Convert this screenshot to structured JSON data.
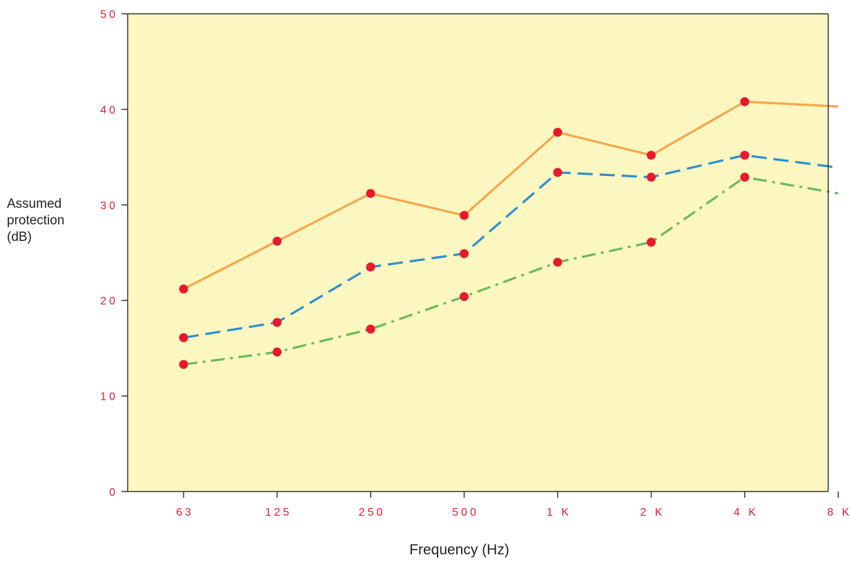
{
  "chart_data": {
    "type": "line",
    "title": "",
    "xlabel": "Frequency (Hz)",
    "ylabel_lines": [
      "Assumed",
      "protection",
      "(dB)"
    ],
    "categories": [
      "63",
      "125",
      "250",
      "500",
      "1 K",
      "2 K",
      "4 K",
      "8 K"
    ],
    "y_ticks": [
      "0",
      "10",
      "20",
      "30",
      "40",
      "50"
    ],
    "ylim": [
      0,
      50
    ],
    "grid": false,
    "series": [
      {
        "values": [
          21.2,
          26.2,
          31.2,
          28.9,
          37.6,
          35.2,
          40.8,
          40.3
        ],
        "color": "#f5a64a",
        "line_style": "solid"
      },
      {
        "values": [
          16.1,
          17.7,
          23.5,
          24.9,
          33.4,
          32.9,
          35.2,
          33.9
        ],
        "color": "#2a8fd2",
        "line_style": "dashed"
      },
      {
        "values": [
          13.3,
          14.6,
          17.0,
          20.4,
          24.0,
          26.1,
          32.9,
          31.2
        ],
        "color": "#6ab85a",
        "line_style": "dash-dot"
      }
    ],
    "marker_color": "#e8192c",
    "plot_background": "#fcf6c0",
    "tick_label_color": "#e8192c"
  }
}
